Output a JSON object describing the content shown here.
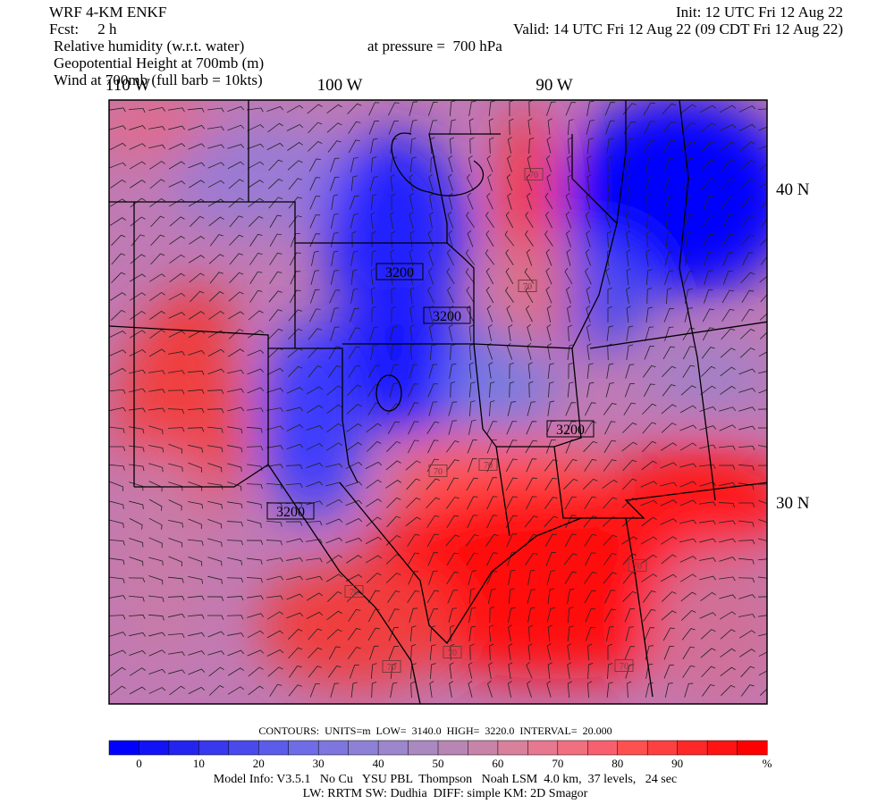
{
  "header": {
    "model": "WRF 4-KM ENKF",
    "forecast": "Fcst:     2 h",
    "fields": [
      "Relative humidity (w.r.t. water)",
      "Geopotential Height at 700mb (m)",
      "Wind at 700mb (full barb = 10kts)"
    ],
    "init": "Init: 12 UTC Fri 12 Aug 22",
    "valid": "Valid: 14 UTC Fri 12 Aug 22 (09 CDT Fri 12 Aug 22)",
    "pressure": "at pressure =  700 hPa"
  },
  "map": {
    "lon_labels": [
      "110 W",
      "100 W",
      "90 W"
    ],
    "lat_labels": [
      "40 N",
      "30 N"
    ],
    "contour_labels": [
      "3200",
      "3200",
      "3200",
      "3200",
      "70",
      "70",
      "70",
      "70",
      "70",
      "70",
      "70",
      "70",
      "70"
    ]
  },
  "contours_info": "CONTOURS:  UNITS=m  LOW=  3140.0  HIGH=  3220.0  INTERVAL=  20.000",
  "colorbar": {
    "labels": [
      0,
      10,
      20,
      30,
      40,
      50,
      60,
      70,
      80,
      90
    ],
    "unit": "%",
    "colors": [
      "#0000ff",
      "#1212f6",
      "#2424f0",
      "#3838ee",
      "#4a4aec",
      "#5c5cea",
      "#6e6ce6",
      "#7e76de",
      "#8e80d6",
      "#9c86cc",
      "#aa88c0",
      "#b886b4",
      "#c884a8",
      "#d8809c",
      "#e67890",
      "#f07080",
      "#f86070",
      "#ff5050",
      "#ff4040",
      "#ff2828",
      "#ff1414",
      "#ff0000"
    ]
  },
  "footer": [
    "Model Info: V3.5.1   No Cu   YSU PBL  Thompson   Noah LSM  4.0 km,  37 levels,   24 sec",
    "LW: RRTM SW: Dudhia  DIFF: simple KM: 2D Smagor"
  ]
}
